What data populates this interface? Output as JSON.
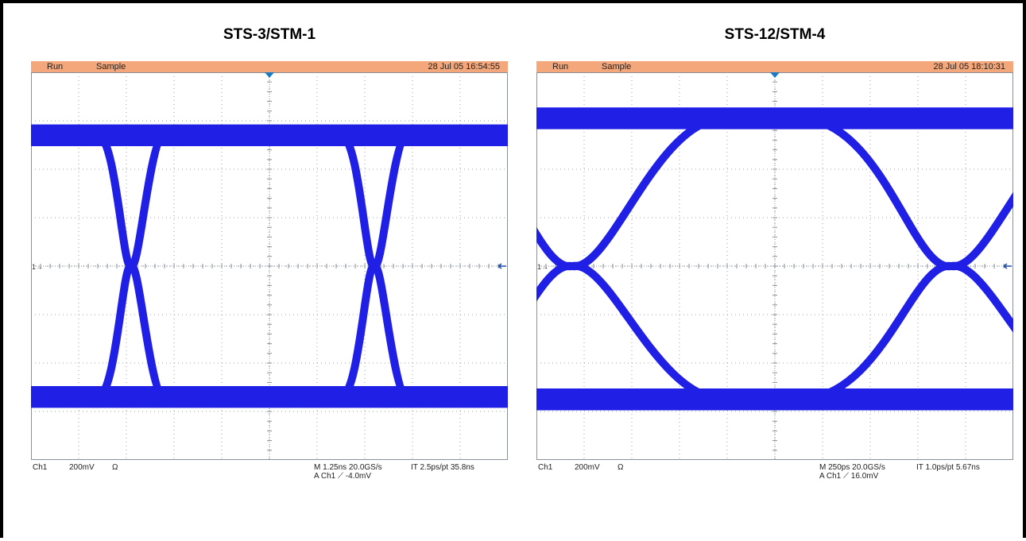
{
  "chart_data": [
    {
      "type": "eye-diagram",
      "title": "STS-3/STM-1",
      "status": {
        "run": "Run",
        "mode": "Sample",
        "timestamp": "28 Jul 05 16:54:55"
      },
      "readout": {
        "channel": "Ch1",
        "scale": "200mV",
        "impedance": "Ω",
        "timebase": "M 1.25ns 20.0GS/s",
        "interp": "IT 2.5ps/pt 35.8ns",
        "trigger": "A Ch1 ⟋ -4.0mV"
      },
      "trace_color": "#1f1fe6",
      "grid": true,
      "divisions": {
        "x": 10,
        "y": 8
      },
      "eye": {
        "high_level_div": 2.7,
        "low_level_div": -2.7,
        "crossings_div": [
          -2.9,
          2.2
        ],
        "crossing_level_div": 0.0,
        "rise_width_div": 0.7
      }
    },
    {
      "type": "eye-diagram",
      "title": "STS-12/STM-4",
      "status": {
        "run": "Run",
        "mode": "Sample",
        "timestamp": "28 Jul 05 18:10:31"
      },
      "readout": {
        "channel": "Ch1",
        "scale": "200mV",
        "impedance": "Ω",
        "timebase": "M 250ps 20.0GS/s",
        "interp": "IT 1.0ps/pt 5.67ns",
        "trigger": "A Ch1 ⟋ 16.0mV"
      },
      "trace_color": "#1f1fe6",
      "grid": true,
      "divisions": {
        "x": 10,
        "y": 8
      },
      "eye": {
        "high_level_div": 3.05,
        "low_level_div": -2.75,
        "crossings_div": [
          -4.25,
          3.7
        ],
        "crossing_level_div": 0.0,
        "rise_width_div": 3.2
      }
    }
  ]
}
